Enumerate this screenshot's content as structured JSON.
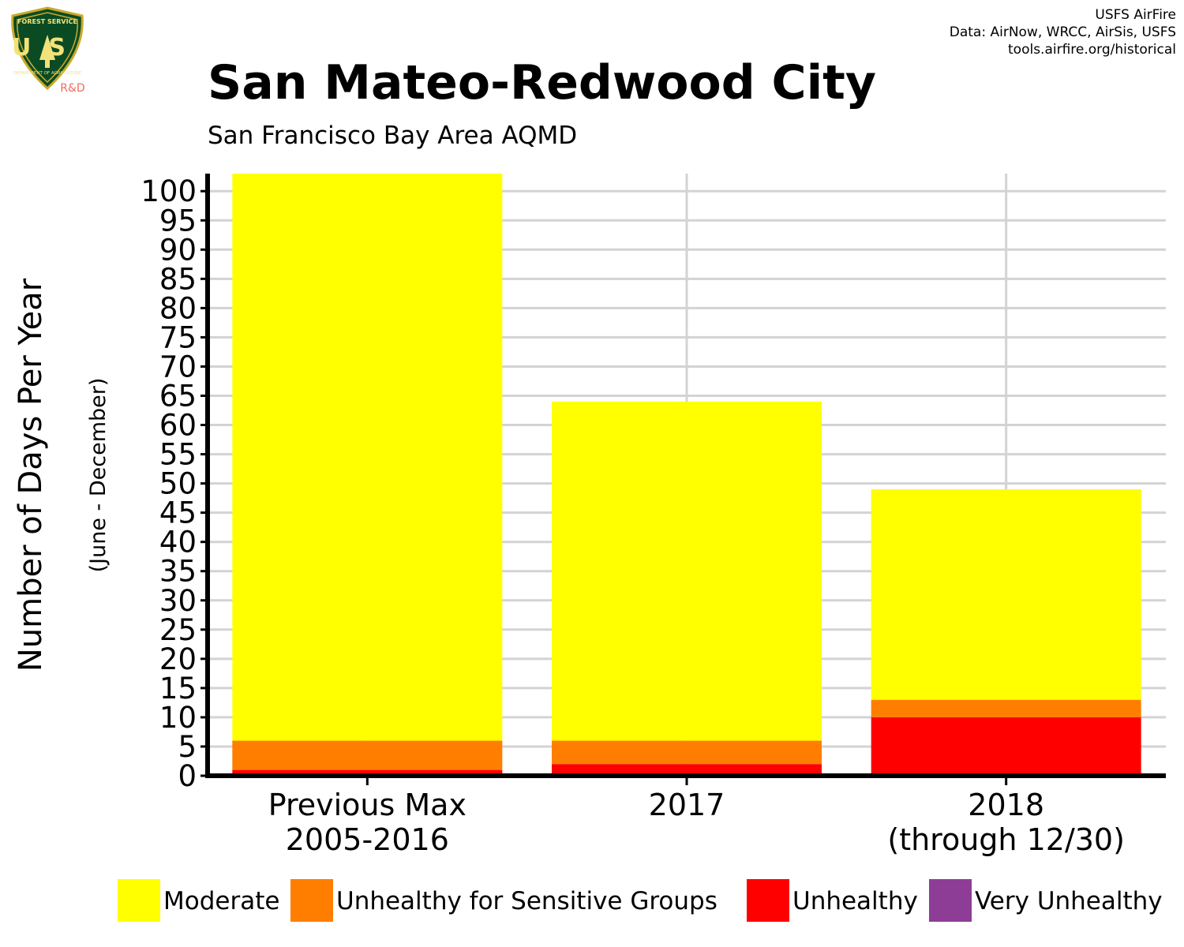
{
  "logo": {
    "top_text": "FOREST SERVICE",
    "letters": "US",
    "bottom_text": "DEPARTMENT OF AGRICULTURE",
    "suffix": "R&D",
    "icon": "forest-service-shield-icon"
  },
  "credits": [
    "USFS AirFire",
    "Data: AirNow, WRCC, AirSis, USFS",
    "tools.airfire.org/historical"
  ],
  "title": "San Mateo-Redwood City",
  "subtitle": "San Francisco Bay Area AQMD",
  "chart_data": {
    "type": "bar",
    "stacked": true,
    "categories": [
      [
        "Previous Max",
        "2005-2016"
      ],
      [
        "2017"
      ],
      [
        "2018",
        "(through 12/30)"
      ]
    ],
    "series": [
      {
        "name": "Very Unhealthy",
        "color": "#8E3D96",
        "values": [
          0,
          0,
          0
        ]
      },
      {
        "name": "Unhealthy",
        "color": "#FF0000",
        "values": [
          1,
          2,
          10
        ]
      },
      {
        "name": "Unhealthy for Sensitive Groups",
        "color": "#FF7E00",
        "values": [
          5,
          4,
          3
        ]
      },
      {
        "name": "Moderate",
        "color": "#FFFF00",
        "values": [
          97,
          58,
          36
        ]
      }
    ],
    "ylabel": "Number of Days Per Year",
    "ylabel_sub": "(June - December)",
    "xlabel": "",
    "ylim": [
      0,
      103
    ],
    "yticks": [
      0,
      5,
      10,
      15,
      20,
      25,
      30,
      35,
      40,
      45,
      50,
      55,
      60,
      65,
      70,
      75,
      80,
      85,
      90,
      95,
      100
    ],
    "grid": true,
    "legend_position": "bottom",
    "legend": [
      {
        "label": "Moderate",
        "color": "#FFFF00"
      },
      {
        "label": "Unhealthy for Sensitive Groups",
        "color": "#FF7E00"
      },
      {
        "label": "Unhealthy",
        "color": "#FF0000"
      },
      {
        "label": "Very Unhealthy",
        "color": "#8E3D96"
      }
    ]
  }
}
